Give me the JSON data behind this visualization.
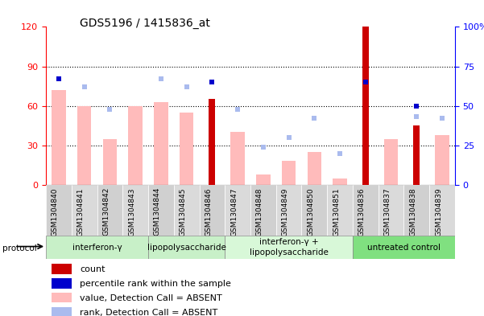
{
  "title": "GDS5196 / 1415836_at",
  "samples": [
    "GSM1304840",
    "GSM1304841",
    "GSM1304842",
    "GSM1304843",
    "GSM1304844",
    "GSM1304845",
    "GSM1304846",
    "GSM1304847",
    "GSM1304848",
    "GSM1304849",
    "GSM1304850",
    "GSM1304851",
    "GSM1304836",
    "GSM1304837",
    "GSM1304838",
    "GSM1304839"
  ],
  "count_values": [
    0,
    0,
    0,
    0,
    0,
    0,
    65,
    0,
    0,
    0,
    0,
    0,
    120,
    0,
    45,
    0
  ],
  "percentile_values": [
    67,
    0,
    0,
    0,
    0,
    0,
    65,
    0,
    0,
    0,
    0,
    0,
    65,
    0,
    50,
    0
  ],
  "value_absent": [
    72,
    60,
    35,
    60,
    63,
    55,
    0,
    40,
    8,
    18,
    25,
    5,
    0,
    35,
    0,
    38
  ],
  "rank_absent": [
    67,
    62,
    48,
    0,
    67,
    62,
    0,
    48,
    24,
    30,
    42,
    20,
    0,
    0,
    43,
    42
  ],
  "protocols": [
    {
      "label": "interferon-γ",
      "start": 0,
      "end": 4,
      "color": "#c8f0c8"
    },
    {
      "label": "lipopolysaccharide",
      "start": 4,
      "end": 7,
      "color": "#c8f0c8"
    },
    {
      "label": "interferon-γ +\nlipopolysaccharide",
      "start": 7,
      "end": 12,
      "color": "#d8f8d8"
    },
    {
      "label": "untreated control",
      "start": 12,
      "end": 16,
      "color": "#80e080"
    }
  ],
  "left_ylim": [
    0,
    120
  ],
  "right_ylim": [
    0,
    100
  ],
  "left_yticks": [
    0,
    30,
    60,
    90,
    120
  ],
  "right_yticks": [
    0,
    25,
    50,
    75,
    100
  ],
  "count_color": "#cc0000",
  "percentile_color": "#0000cc",
  "value_absent_color": "#ffbbbb",
  "rank_absent_color": "#aabbee",
  "bg_color": "#ffffff",
  "plot_bg_color": "#ffffff",
  "tick_bg_color": "#d8d8d8",
  "legend_items": [
    {
      "label": "count",
      "color": "#cc0000"
    },
    {
      "label": "percentile rank within the sample",
      "color": "#0000cc"
    },
    {
      "label": "value, Detection Call = ABSENT",
      "color": "#ffbbbb"
    },
    {
      "label": "rank, Detection Call = ABSENT",
      "color": "#aabbee"
    }
  ]
}
